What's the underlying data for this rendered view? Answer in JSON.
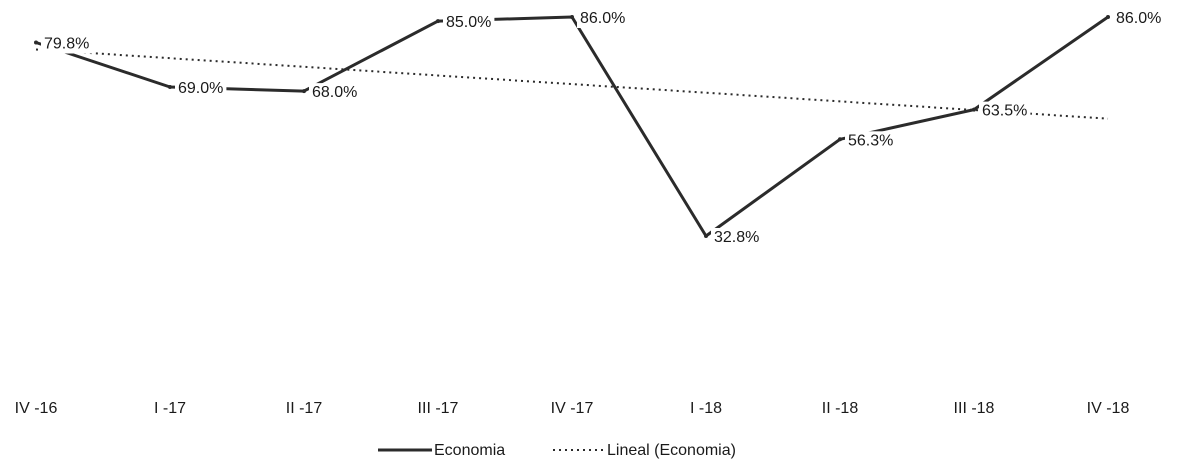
{
  "chart_data": {
    "type": "line",
    "categories": [
      "IV -16",
      "I -17",
      "II -17",
      "III -17",
      "IV -17",
      "I -18",
      "II -18",
      "III -18",
      "IV -18"
    ],
    "series": [
      {
        "name": "Economia",
        "values": [
          79.8,
          69.0,
          68.0,
          85.0,
          86.0,
          32.8,
          56.3,
          63.5,
          86.0
        ],
        "labels": [
          "79.8%",
          "69.0%",
          "68.0%",
          "85.0%",
          "86.0%",
          "32.8%",
          "56.3%",
          "63.5%",
          "86.0%"
        ],
        "style": "solid",
        "color": "#2b2b2b"
      },
      {
        "name": "Lineal (Economia)",
        "trendline_of": "Economia",
        "values": [
          78.1,
          76.0,
          73.9,
          71.8,
          69.7,
          67.6,
          65.5,
          63.4,
          61.3
        ],
        "style": "dotted",
        "color": "#2b2b2b"
      }
    ],
    "legend": {
      "position": "bottom",
      "entries": [
        "Economia",
        "Lineal (Economia)"
      ]
    },
    "grid": false,
    "ylim": [
      32.8,
      86.0
    ],
    "title": "",
    "xlabel": "",
    "ylabel": ""
  }
}
